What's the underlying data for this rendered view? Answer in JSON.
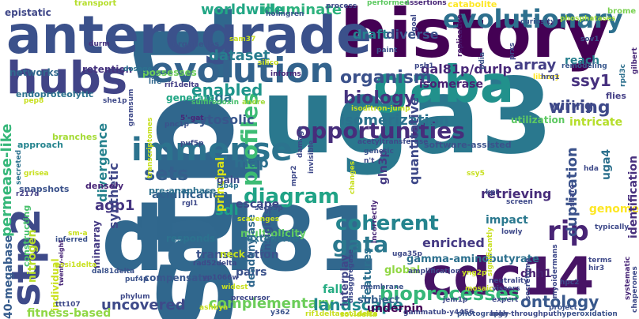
{
  "cloud": {
    "words": [
      {
        "t": "stp1",
        "c": "#30678d"
      },
      {
        "t": "uga3",
        "c": "#2a788e"
      },
      {
        "t": "dal81",
        "c": "#31688e"
      },
      {
        "t": "history",
        "c": "#440154"
      },
      {
        "t": "anterograde",
        "c": "#3b518b"
      },
      {
        "t": "hubs",
        "c": "#414487"
      },
      {
        "t": "gaba",
        "c": "#21918c"
      },
      {
        "t": "cdc14",
        "c": "#471365"
      },
      {
        "t": "stp2",
        "c": "#3e4a89"
      },
      {
        "t": "evolution",
        "c": "#33638d"
      },
      {
        "t": "immense",
        "c": "#2c738e"
      },
      {
        "t": "evolutionary",
        "c": "#2d708e"
      },
      {
        "t": "diagram",
        "c": "#20a386"
      },
      {
        "t": "opportunities",
        "c": "#472d7b"
      },
      {
        "t": "organism",
        "c": "#3b518b"
      },
      {
        "t": "biology",
        "c": "#46337f"
      },
      {
        "t": "coherent",
        "c": "#25848e"
      },
      {
        "t": "rip",
        "c": "#482475"
      },
      {
        "t": "gata",
        "c": "#2a788e"
      },
      {
        "t": "profiles",
        "c": "#3dbc74"
      },
      {
        "t": "enabled",
        "c": "#1f958b"
      },
      {
        "t": "sets",
        "c": "#355f8d"
      },
      {
        "t": "wiring",
        "c": "#3e4989"
      },
      {
        "t": "ssy1",
        "c": "#46307e"
      },
      {
        "t": "bioprocesses",
        "c": "#35b779"
      },
      {
        "t": "complementary",
        "c": "#6ccd5a"
      },
      {
        "t": "ontology",
        "c": "#38588c"
      },
      {
        "t": "landscape",
        "c": "#23898e"
      },
      {
        "t": "illuminate",
        "c": "#2db27d"
      },
      {
        "t": "worldwide",
        "c": "#22a785"
      },
      {
        "t": "dataset",
        "c": "#287d8e"
      },
      {
        "t": "array",
        "c": "#433e85"
      },
      {
        "t": "map",
        "c": "#2d708e"
      },
      {
        "t": "sdl",
        "c": "#1f9e89"
      },
      {
        "t": "agp1",
        "c": "#453581"
      },
      {
        "t": "uncovered",
        "c": "#3e4a89"
      },
      {
        "t": "enriched",
        "c": "#443983"
      },
      {
        "t": "duplication",
        "c": "#3b528b"
      },
      {
        "t": "isomerization",
        "c": "#2c728e"
      },
      {
        "t": "draft",
        "c": "#26828e"
      },
      {
        "t": "diverse",
        "c": "#3b528b"
      },
      {
        "t": "dal81p/durlp",
        "c": "#482878"
      },
      {
        "t": "permease-like",
        "c": "#35b779"
      },
      {
        "t": "uga",
        "c": "#2a768e"
      },
      {
        "t": "wiring",
        "c": "#3e4989"
      },
      {
        "t": "synthetic",
        "c": "#3f4788"
      },
      {
        "t": "cytosolic",
        "c": "#39568c"
      },
      {
        "t": "divergence",
        "c": "#26828e"
      },
      {
        "t": "reach",
        "c": "#277f8e"
      },
      {
        "t": "intricate",
        "c": "#b5de2b"
      },
      {
        "t": "utilization",
        "c": "#5ec962"
      },
      {
        "t": "isomerase",
        "c": "#482173"
      },
      {
        "t": "quantitative",
        "c": "#3e4989"
      },
      {
        "t": "gln3p",
        "c": "#443a83"
      },
      {
        "t": "acidification",
        "c": "#34618d"
      },
      {
        "t": "retrieving",
        "c": "#472c7a"
      },
      {
        "t": "impact",
        "c": "#2a788e"
      },
      {
        "t": "genome",
        "c": "#fde725"
      },
      {
        "t": "uga4",
        "c": "#2d718e"
      },
      {
        "t": "gamma-aminobutyrate",
        "c": "#2d708e"
      },
      {
        "t": "dhh1",
        "c": "#481f70"
      },
      {
        "t": "identification",
        "c": "#472f7d"
      },
      {
        "t": "translocation",
        "c": "#3b528b"
      },
      {
        "t": "nitrogen",
        "c": "#b8de29"
      },
      {
        "t": "40-megabase",
        "c": "#365c8d"
      },
      {
        "t": "fitness-based",
        "c": "#8fd744"
      },
      {
        "t": "principal",
        "c": "#d8e219"
      },
      {
        "t": "escape",
        "c": "#3e4989"
      },
      {
        "t": "features",
        "c": "#2d708e"
      },
      {
        "t": "fall",
        "c": "#25ac82"
      },
      {
        "t": "pairs",
        "c": "#3b528b"
      },
      {
        "t": "underpin",
        "c": "#440154"
      },
      {
        "t": "subject",
        "c": "#355f8d"
      },
      {
        "t": "interplay",
        "c": "#404688"
      },
      {
        "t": "global",
        "c": "#90d743"
      },
      {
        "t": "multiplicity",
        "c": "#5ec962"
      },
      {
        "t": "insights",
        "c": "#39568c"
      },
      {
        "t": "deadenylase",
        "c": "#31688e"
      },
      {
        "t": "extensive",
        "c": "#2d708e"
      },
      {
        "t": "responds",
        "c": "#2c728e"
      },
      {
        "t": "neck",
        "c": "#c2df23"
      },
      {
        "t": "compensate",
        "c": "#39568c"
      },
      {
        "t": "individual",
        "c": "#cae11f"
      },
      {
        "t": "minarray",
        "c": "#443983"
      },
      {
        "t": "retention",
        "c": "#46337f"
      },
      {
        "t": "possesses",
        "c": "#6ccd5a"
      },
      {
        "t": "networks",
        "c": "#31688e"
      },
      {
        "t": "epistatic",
        "c": "#3f4788"
      },
      {
        "t": "generate",
        "c": "#22a785"
      },
      {
        "t": "endoproteolytic",
        "c": "#2c728e"
      },
      {
        "t": "approach",
        "c": "#25848e"
      },
      {
        "t": "constructing",
        "c": "#4ac16d"
      },
      {
        "t": "branches",
        "c": "#a5db36"
      },
      {
        "t": "snapshots",
        "c": "#3b528b"
      },
      {
        "t": "densely",
        "c": "#482677"
      },
      {
        "t": "pre-anaphase",
        "c": "#2d708e"
      },
      {
        "t": "organelles",
        "c": "#3b528b"
      },
      {
        "t": "catabolite",
        "c": "#fde725"
      },
      {
        "t": "assertions",
        "c": "#482677"
      },
      {
        "t": "performed",
        "c": "#5ec962"
      },
      {
        "t": "process",
        "c": "#3e4989"
      },
      {
        "t": "transport",
        "c": "#b5de2b"
      },
      {
        "t": "curiosity",
        "c": "#39568c"
      },
      {
        "t": "phosphatases",
        "c": "#a0da39"
      },
      {
        "t": "brome",
        "c": "#7ad151"
      },
      {
        "t": "remodeling",
        "c": "#38588c"
      },
      {
        "t": "library",
        "c": "#fde725"
      },
      {
        "t": "flies",
        "c": "#433e85"
      },
      {
        "t": "software-assisted",
        "c": "#3b528b"
      },
      {
        "t": "acetyltransferase",
        "c": "#3e4989"
      },
      {
        "t": "sulfiredoxin",
        "c": "#4ac16d"
      },
      {
        "t": "holmgren",
        "c": "#3b528b"
      },
      {
        "t": "informs",
        "c": "#482878"
      },
      {
        "t": "dosage",
        "c": "#2c728e"
      },
      {
        "t": "life",
        "c": "#31688e"
      },
      {
        "t": "durm",
        "c": "#46337f"
      },
      {
        "t": "paint",
        "c": "#3b528b"
      },
      {
        "t": "psh1",
        "c": "#3e4989"
      },
      {
        "t": "goal",
        "c": "#3e4989"
      },
      {
        "t": "replicative",
        "c": "#48186a"
      },
      {
        "t": "pdia",
        "c": "#3b528b"
      },
      {
        "t": "prxs",
        "c": "#3e4989"
      },
      {
        "t": "sov1",
        "c": "#3b528b"
      },
      {
        "t": "hrq1",
        "c": "#3e4989"
      },
      {
        "t": "rpd3c",
        "c": "#2d708e"
      },
      {
        "t": "gilbert",
        "c": "#482878"
      },
      {
        "t": "rif1delta",
        "c": "#433e85"
      },
      {
        "t": "andre",
        "c": "#a0da39"
      },
      {
        "t": "she1p",
        "c": "#3e4989"
      },
      {
        "t": "pnc1p",
        "c": "#3b528b"
      },
      {
        "t": "puf5p",
        "c": "#3e4989"
      },
      {
        "t": "5'-gat",
        "c": "#482677"
      },
      {
        "t": "gain",
        "c": "#3e4989"
      },
      {
        "t": "lsb4p",
        "c": "#2c728e"
      },
      {
        "t": "rgl1",
        "c": "#3e4989"
      },
      {
        "t": "sec63p",
        "c": "#3b528b"
      },
      {
        "t": "mpr2",
        "c": "#3e4989"
      },
      {
        "t": "damage",
        "c": "#3e4989"
      },
      {
        "t": "invisible",
        "c": "#3e4989"
      },
      {
        "t": "genetic",
        "c": "#3b528b"
      },
      {
        "t": "n't",
        "c": "#3e4989"
      },
      {
        "t": "gramsum",
        "c": "#3e4989"
      },
      {
        "t": "transcriptomes",
        "c": "#c8e020"
      },
      {
        "t": "pep8",
        "c": "#c8e020"
      },
      {
        "t": "grisea",
        "c": "#c8e020"
      },
      {
        "t": "r217a",
        "c": "#433e85"
      },
      {
        "t": "secreted",
        "c": "#2c728e"
      },
      {
        "t": "inferred",
        "c": "#3b528b"
      },
      {
        "t": "dal81delta",
        "c": "#3b528b"
      },
      {
        "t": "rad52delta",
        "c": "#3e4989"
      },
      {
        "t": "yp1066w",
        "c": "#3e4989"
      },
      {
        "t": "widest",
        "c": "#c8e020"
      },
      {
        "t": "precursor",
        "c": "#3e4989"
      },
      {
        "t": "phylum",
        "c": "#3e4989"
      },
      {
        "t": "ashbya",
        "c": "#c8e020"
      },
      {
        "t": "y362",
        "c": "#3b528b"
      },
      {
        "t": "puf4p",
        "c": "#3b528b"
      },
      {
        "t": "ttt107",
        "c": "#3e4989"
      },
      {
        "t": "twenty-eight",
        "c": "#482677"
      },
      {
        "t": "gammatub-y4456",
        "c": "#3e4989"
      },
      {
        "t": "rif1deltaest1delta",
        "c": "#c8e020"
      },
      {
        "t": "photography",
        "c": "#3b528b"
      },
      {
        "t": "high-throughput",
        "c": "#3e4989"
      },
      {
        "t": "hyperoxidation",
        "c": "#3b528b"
      },
      {
        "t": "membrane",
        "c": "#3b528b"
      },
      {
        "t": "jem1p",
        "c": "#3e4989"
      },
      {
        "t": "expert",
        "c": "#3e4989"
      },
      {
        "t": "secretome",
        "c": "#3e4989"
      },
      {
        "t": "myoidermans",
        "c": "#3e4989"
      },
      {
        "t": "chaperones",
        "c": "#3e4989"
      },
      {
        "t": "systematic",
        "c": "#482677"
      },
      {
        "t": "project",
        "c": "#3b528b"
      },
      {
        "t": "hpc2",
        "c": "#3e4989"
      },
      {
        "t": "neutrality",
        "c": "#3e4989"
      },
      {
        "t": "vissers",
        "c": "#3e4989"
      },
      {
        "t": "significantly",
        "c": "#c8e020"
      },
      {
        "t": "terms",
        "c": "#3e4989"
      },
      {
        "t": "hir3",
        "c": "#3e4989"
      },
      {
        "t": "yng2p",
        "c": "#c8e020"
      },
      {
        "t": "lowly",
        "c": "#3e4989"
      },
      {
        "t": "typically",
        "c": "#3e4989"
      },
      {
        "t": "kpi",
        "c": "#3e4989"
      },
      {
        "t": "screen",
        "c": "#3e4989"
      },
      {
        "t": "share",
        "c": "#3e4989"
      },
      {
        "t": "hda",
        "c": "#3e4989"
      },
      {
        "t": "amplification",
        "c": "#3e4989"
      },
      {
        "t": "uga35p",
        "c": "#3e4989"
      },
      {
        "t": "incorrectly",
        "c": "#482677"
      },
      {
        "t": "ssy5",
        "c": "#c8e020"
      },
      {
        "t": "sovldelta",
        "c": "#c8e020"
      },
      {
        "t": "disaggregase",
        "c": "#3e4989"
      },
      {
        "t": "mosaic",
        "c": "#c8e020"
      },
      {
        "t": "changes",
        "c": "#c8e020"
      },
      {
        "t": "isoditron-jump",
        "c": "#c8e020"
      },
      {
        "t": "sam37",
        "c": "#c8e020"
      },
      {
        "t": "silico",
        "c": "#c8e020"
      },
      {
        "t": "sm-a",
        "c": "#c8e020"
      },
      {
        "t": "essi1delta",
        "c": "#c8e020"
      },
      {
        "t": "scavenges",
        "c": "#c8e020"
      }
    ]
  }
}
